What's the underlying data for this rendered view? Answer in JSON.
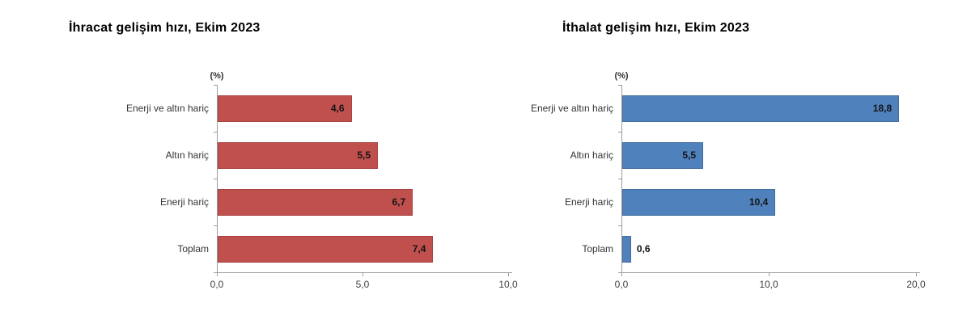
{
  "chart_data": [
    {
      "type": "bar",
      "orientation": "horizontal",
      "title": "İhracat gelişim hızı, Ekim 2023",
      "unit_label": "(%)",
      "categories": [
        "Enerji ve altın hariç",
        "Altın hariç",
        "Enerji hariç",
        "Toplam"
      ],
      "values": [
        4.6,
        5.5,
        6.7,
        7.4
      ],
      "value_labels": [
        "4,6",
        "5,5",
        "6,7",
        "7,4"
      ],
      "xlim": [
        0,
        10
      ],
      "xticks": [
        0,
        5,
        10
      ],
      "xtick_labels": [
        "0,0",
        "5,0",
        "10,0"
      ],
      "bar_color": "#c0504d",
      "bar_border_color": "#a84341",
      "grid": false,
      "legend": false
    },
    {
      "type": "bar",
      "orientation": "horizontal",
      "title": "İthalat gelişim hızı, Ekim 2023",
      "unit_label": "(%)",
      "categories": [
        "Enerji ve altın hariç",
        "Altın hariç",
        "Enerji hariç",
        "Toplam"
      ],
      "values": [
        18.8,
        5.5,
        10.4,
        0.6
      ],
      "value_labels": [
        "18,8",
        "5,5",
        "10,4",
        "0,6"
      ],
      "xlim": [
        0,
        20
      ],
      "xticks": [
        0,
        10,
        20
      ],
      "xtick_labels": [
        "0,0",
        "10,0",
        "20,0"
      ],
      "bar_color": "#4f81bd",
      "bar_border_color": "#436f9f",
      "grid": false,
      "legend": false
    }
  ],
  "colors": {
    "axis": "#9b9b9b",
    "title_text": "#000000",
    "label_text": "#333333",
    "value_text": "#141414",
    "background": "#ffffff"
  }
}
